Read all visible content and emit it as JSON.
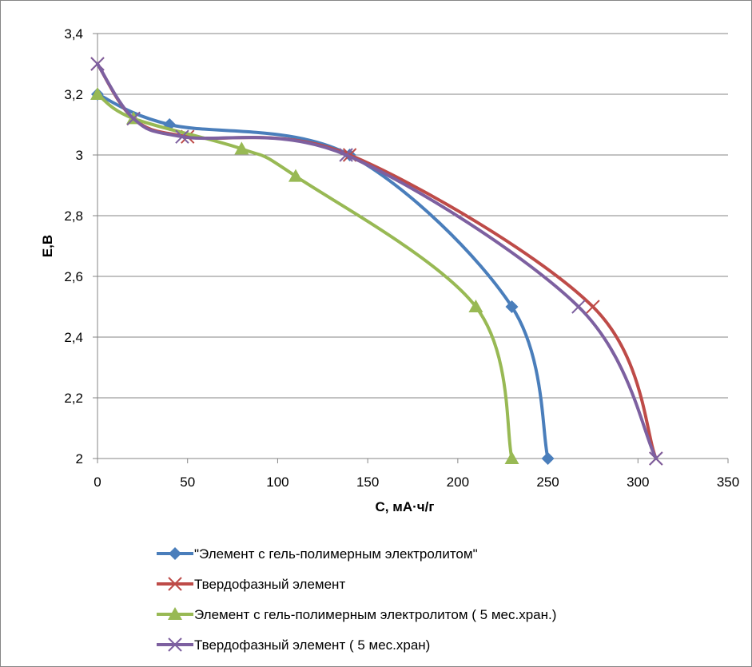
{
  "chart_data": {
    "type": "line",
    "title": "",
    "xlabel": "C, мА·ч/г",
    "ylabel": "E,B",
    "xlim": [
      0,
      350
    ],
    "ylim": [
      2,
      3.4
    ],
    "xticks": [
      0,
      50,
      100,
      150,
      200,
      250,
      300,
      350
    ],
    "xtick_labels": [
      "0",
      "50",
      "100",
      "150",
      "200",
      "250",
      "300",
      "350"
    ],
    "yticks": [
      2,
      2.2,
      2.4,
      2.6,
      2.8,
      3,
      3.2,
      3.4
    ],
    "ytick_labels": [
      "2",
      "2,2",
      "2,4",
      "2,6",
      "2,8",
      "3",
      "3,2",
      "3,4"
    ],
    "grid": "horizontal",
    "legend_position": "bottom",
    "series": [
      {
        "name": "\"Элемент с гель-полимерным электролитом\"",
        "color": "#4a7ebb",
        "marker": "diamond",
        "x": [
          0,
          40,
          140,
          230,
          250
        ],
        "y": [
          3.2,
          3.1,
          3.0,
          2.5,
          2.0
        ]
      },
      {
        "name": "Твердофазный элемент",
        "color": "#be4b48",
        "marker": "x",
        "x": [
          0,
          20,
          50,
          140,
          275,
          310
        ],
        "y": [
          3.3,
          3.12,
          3.06,
          3.0,
          2.5,
          2.0
        ]
      },
      {
        "name": "Элемент с гель-полимерным электролитом ( 5 мес.хран.)",
        "color": "#98b954",
        "marker": "triangle",
        "x": [
          0,
          20,
          80,
          110,
          210,
          230
        ],
        "y": [
          3.2,
          3.12,
          3.02,
          2.93,
          2.5,
          2.0
        ]
      },
      {
        "name": "Твердофазный элемент ( 5 мес.хран)",
        "color": "#7d60a0",
        "marker": "x",
        "x": [
          0,
          20,
          47,
          138,
          267,
          310
        ],
        "y": [
          3.3,
          3.12,
          3.06,
          3.0,
          2.5,
          2.0
        ]
      }
    ]
  }
}
